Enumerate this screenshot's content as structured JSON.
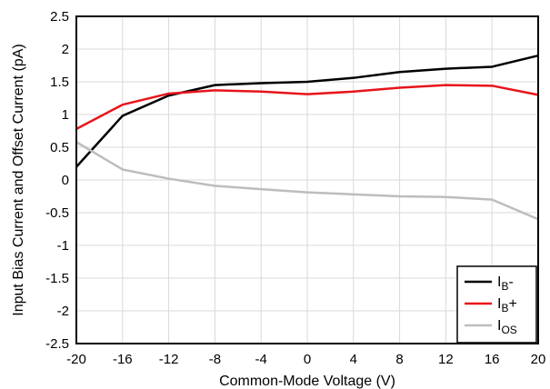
{
  "chart_data": {
    "type": "line",
    "xlabel": "Common-Mode Voltage (V)",
    "ylabel": "Input Bias Current and Offset Current (pA)",
    "xlim": [
      -20,
      20
    ],
    "ylim": [
      -2.5,
      2.5
    ],
    "xticks": [
      -20,
      -16,
      -12,
      -8,
      -4,
      0,
      4,
      8,
      12,
      16,
      20
    ],
    "yticks": [
      2.5,
      2,
      1.5,
      1,
      0.5,
      0,
      -0.5,
      -1,
      -1.5,
      -2,
      -2.5
    ],
    "xtick_labels": [
      "-20",
      "-16",
      "-12",
      "-8",
      "-4",
      "0",
      "4",
      "8",
      "12",
      "16",
      "20"
    ],
    "ytick_labels": [
      "2.5",
      "2",
      "1.5",
      "1",
      "0.5",
      "0",
      "-0.5",
      "-1",
      "-1.5",
      "-2",
      "-2.5"
    ],
    "grid": true,
    "legend_position": "bottom-right",
    "series": [
      {
        "name": "IB-",
        "label_main": "I",
        "label_sub": "B",
        "label_suffix": "-",
        "color": "#000000",
        "x": [
          -20,
          -16,
          -12,
          -8,
          -4,
          0,
          4,
          8,
          12,
          16,
          20
        ],
        "y": [
          0.2,
          0.98,
          1.29,
          1.45,
          1.48,
          1.5,
          1.56,
          1.65,
          1.7,
          1.73,
          1.9
        ]
      },
      {
        "name": "IB+",
        "label_main": "I",
        "label_sub": "B",
        "label_suffix": "+",
        "color": "#e8141b",
        "x": [
          -20,
          -16,
          -12,
          -8,
          -4,
          0,
          4,
          8,
          12,
          16,
          20
        ],
        "y": [
          0.78,
          1.15,
          1.32,
          1.37,
          1.35,
          1.31,
          1.35,
          1.41,
          1.45,
          1.44,
          1.3
        ]
      },
      {
        "name": "IOS",
        "label_main": "I",
        "label_sub": "OS",
        "label_suffix": "",
        "color": "#bdbdbd",
        "x": [
          -20,
          -16,
          -12,
          -8,
          -4,
          0,
          4,
          8,
          12,
          16,
          20
        ],
        "y": [
          0.58,
          0.16,
          0.02,
          -0.09,
          -0.14,
          -0.19,
          -0.22,
          -0.25,
          -0.26,
          -0.3,
          -0.6
        ]
      }
    ]
  }
}
